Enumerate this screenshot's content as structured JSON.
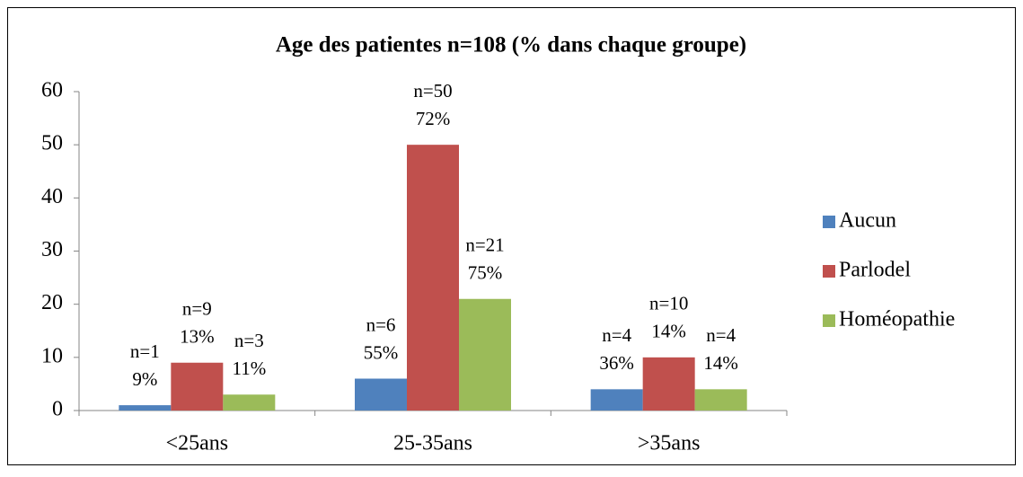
{
  "chart_data": {
    "type": "bar",
    "title": "Age des patientes n=108 (% dans chaque groupe)",
    "categories": [
      "<25ans",
      "25-35ans",
      ">35ans"
    ],
    "series": [
      {
        "name": "Aucun",
        "color": "#4f81bd",
        "values": [
          1,
          6,
          4
        ],
        "value_labels": [
          "n=1",
          "n=6",
          "n=4"
        ],
        "percent_labels": [
          "9%",
          "55%",
          "36%"
        ]
      },
      {
        "name": "Parlodel",
        "color": "#c0504d",
        "values": [
          9,
          50,
          10
        ],
        "value_labels": [
          "n=9",
          "n=50",
          "n=10"
        ],
        "percent_labels": [
          "13%",
          "72%",
          "14%"
        ]
      },
      {
        "name": "Homéopathie",
        "color": "#9bbb59",
        "values": [
          3,
          21,
          4
        ],
        "value_labels": [
          "n=3",
          "n=21",
          "n=4"
        ],
        "percent_labels": [
          "11%",
          "75%",
          "14%"
        ]
      }
    ],
    "ylim": [
      0,
      60
    ],
    "yticks": [
      0,
      10,
      20,
      30,
      40,
      50,
      60
    ],
    "grid": false,
    "legend": "right"
  }
}
